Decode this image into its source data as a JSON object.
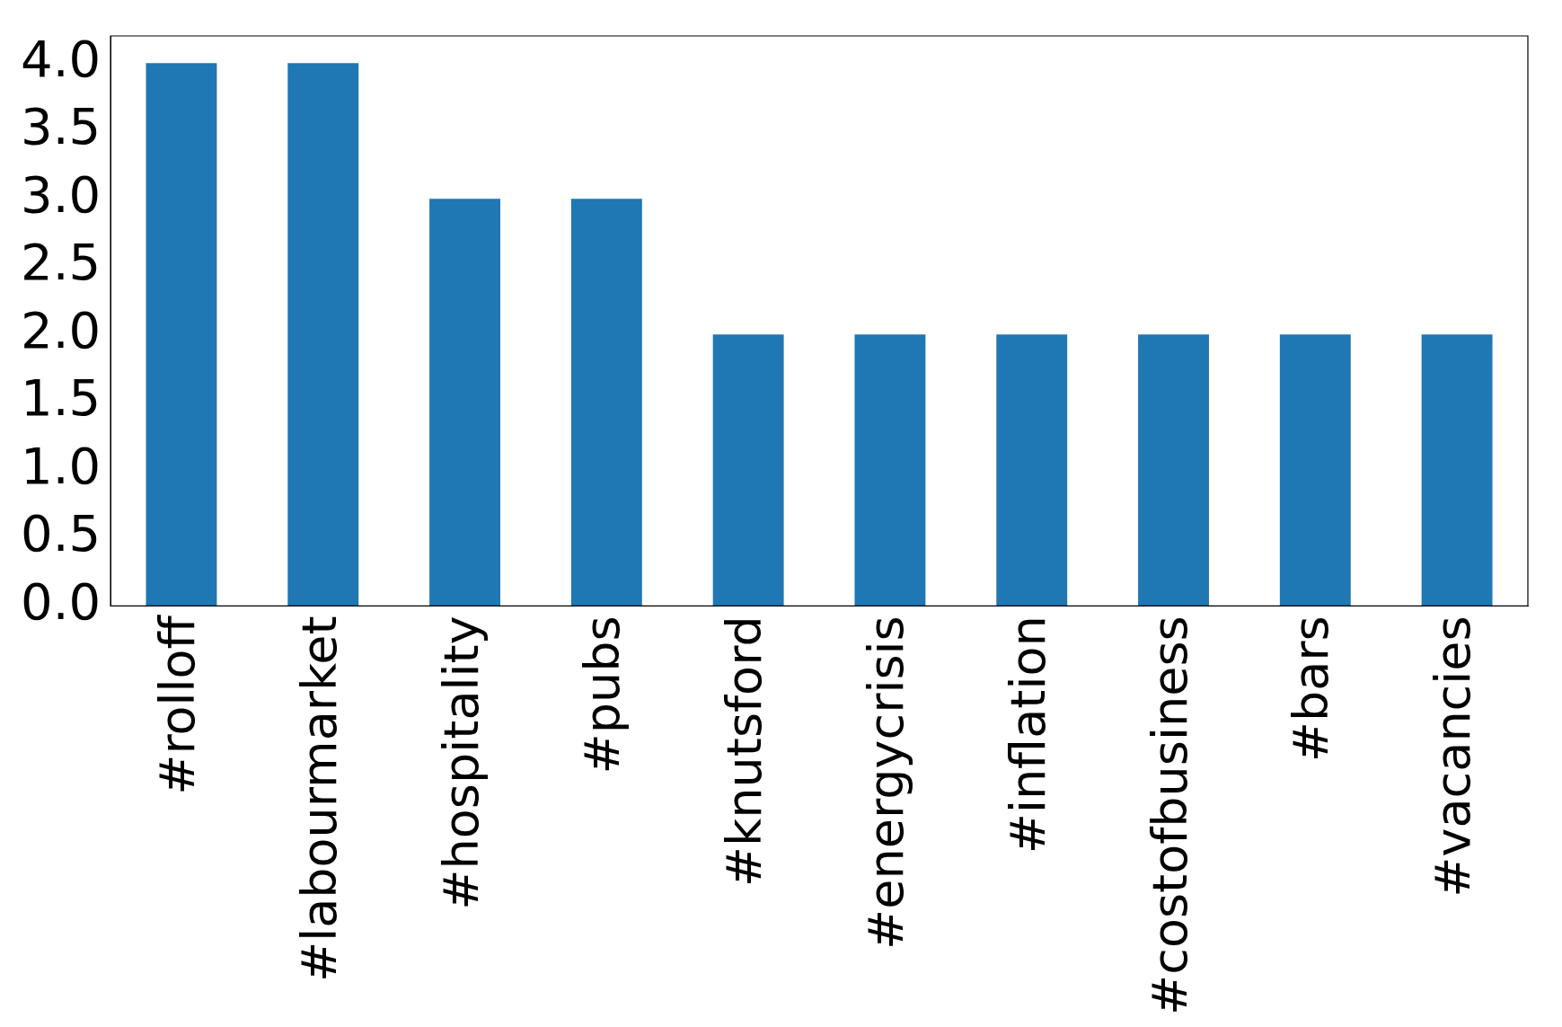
{
  "chart_data": {
    "type": "bar",
    "categories": [
      "#rolloff",
      "#labourmarket",
      "#hospitality",
      "#pubs",
      "#knutsford",
      "#energycrisis",
      "#inflation",
      "#costofbusiness",
      "#bars",
      "#vacancies"
    ],
    "values": [
      4,
      4,
      3,
      3,
      2,
      2,
      2,
      2,
      2,
      2
    ],
    "color": "#1f77b4",
    "ylim": [
      0,
      4.2
    ],
    "yticks": [
      {
        "value": 0,
        "label": "0.0"
      },
      {
        "value": 0.5,
        "label": "0.5"
      },
      {
        "value": 1,
        "label": "1.0"
      },
      {
        "value": 1.5,
        "label": "1.5"
      },
      {
        "value": 2,
        "label": "2.0"
      },
      {
        "value": 2.5,
        "label": "2.5"
      },
      {
        "value": 3,
        "label": "3.0"
      },
      {
        "value": 3.5,
        "label": "3.5"
      },
      {
        "value": 4,
        "label": "4.0"
      }
    ],
    "grid": false,
    "legend": false
  }
}
